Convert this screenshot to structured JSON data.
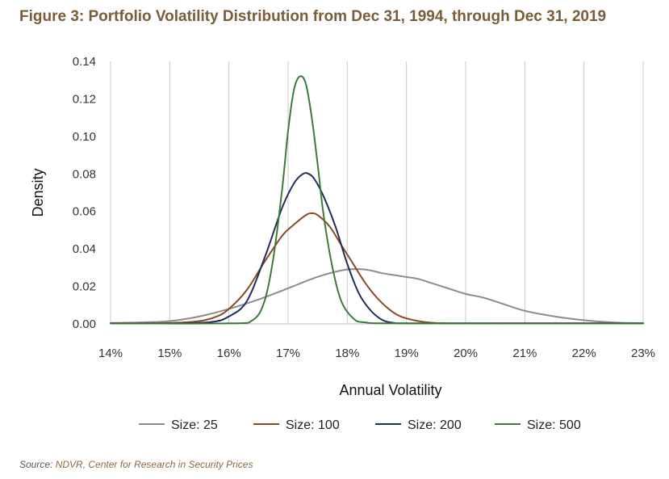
{
  "title": "Figure 3: Portfolio Volatility Distribution from Dec 31, 1994, through Dec 31, 2019",
  "source": {
    "prefix": "Source: ",
    "org": "NDVR",
    "sep": ", ",
    "rest": "Center for Research in Security Prices"
  },
  "chart_data": {
    "type": "line",
    "title": "Figure 3: Portfolio Volatility Distribution from Dec 31, 1994, through Dec 31, 2019",
    "xlabel": "Annual Volatility",
    "ylabel": "Density",
    "xlim": [
      14,
      23
    ],
    "ylim": [
      0,
      0.14
    ],
    "x_ticks": [
      14,
      15,
      16,
      17,
      18,
      19,
      20,
      21,
      22,
      23
    ],
    "x_tick_labels": [
      "14%",
      "15%",
      "16%",
      "17%",
      "18%",
      "19%",
      "20%",
      "21%",
      "22%",
      "23%"
    ],
    "y_ticks": [
      0,
      0.02,
      0.04,
      0.06,
      0.08,
      0.1,
      0.12,
      0.14
    ],
    "y_tick_labels": [
      "0.00",
      "0.02",
      "0.04",
      "0.06",
      "0.08",
      "0.10",
      "0.12",
      "0.14"
    ],
    "grid": "vertical",
    "legend_position": "bottom",
    "series": [
      {
        "name": "Size: 25",
        "color": "#8c8c8c",
        "x": [
          14,
          14.5,
          15,
          15.5,
          16,
          16.5,
          17,
          17.4,
          17.7,
          18,
          18.3,
          18.6,
          18.8,
          19,
          19.2,
          19.4,
          19.7,
          20,
          20.3,
          20.6,
          21,
          21.5,
          22,
          22.5,
          23
        ],
        "y": [
          0.0005,
          0.0008,
          0.0015,
          0.004,
          0.008,
          0.013,
          0.019,
          0.024,
          0.027,
          0.029,
          0.029,
          0.027,
          0.026,
          0.025,
          0.024,
          0.022,
          0.019,
          0.016,
          0.014,
          0.011,
          0.007,
          0.004,
          0.002,
          0.0008,
          0.0003
        ]
      },
      {
        "name": "Size: 100",
        "color": "#8b4a26",
        "x": [
          14,
          15,
          15.5,
          15.8,
          16,
          16.3,
          16.6,
          16.9,
          17.1,
          17.3,
          17.4,
          17.5,
          17.7,
          17.9,
          18.1,
          18.3,
          18.5,
          18.7,
          18.9,
          19.2,
          19.5,
          20,
          21,
          23
        ],
        "y": [
          0.0003,
          0.0005,
          0.0015,
          0.004,
          0.008,
          0.018,
          0.033,
          0.047,
          0.053,
          0.058,
          0.059,
          0.058,
          0.052,
          0.042,
          0.032,
          0.022,
          0.014,
          0.008,
          0.004,
          0.0015,
          0.0005,
          0.0003,
          0.0003,
          0.0003
        ]
      },
      {
        "name": "Size: 200",
        "color": "#1f2d5a",
        "x": [
          14,
          15,
          15.7,
          16,
          16.3,
          16.6,
          16.9,
          17.1,
          17.25,
          17.35,
          17.45,
          17.6,
          17.8,
          18,
          18.2,
          18.4,
          18.6,
          18.8,
          19,
          20,
          23
        ],
        "y": [
          0.0003,
          0.0003,
          0.001,
          0.004,
          0.012,
          0.035,
          0.062,
          0.075,
          0.08,
          0.08,
          0.077,
          0.068,
          0.052,
          0.032,
          0.016,
          0.007,
          0.002,
          0.0005,
          0.0003,
          0.0003,
          0.0003
        ]
      },
      {
        "name": "Size: 500",
        "color": "#3d7a3a",
        "x": [
          14,
          16,
          16.4,
          16.6,
          16.75,
          16.9,
          17.0,
          17.1,
          17.2,
          17.3,
          17.4,
          17.5,
          17.6,
          17.75,
          17.9,
          18.1,
          18.3,
          19,
          23
        ],
        "y": [
          0.0003,
          0.0003,
          0.002,
          0.012,
          0.035,
          0.072,
          0.103,
          0.125,
          0.132,
          0.128,
          0.11,
          0.085,
          0.058,
          0.03,
          0.012,
          0.003,
          0.0008,
          0.0003,
          0.0003
        ]
      }
    ]
  }
}
